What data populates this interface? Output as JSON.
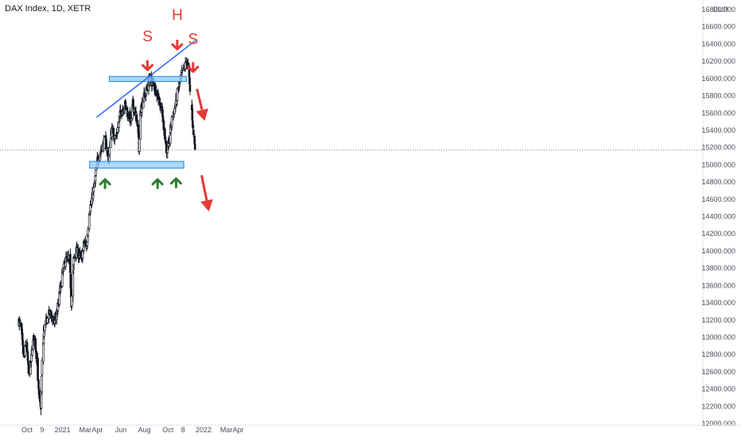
{
  "symbol": "DAX Index, 1D, XETR",
  "currency": "EUR",
  "colors": {
    "candle": "#131722",
    "trend": "#2962ff",
    "zone_fill": "#90caf9",
    "zone_border": "#1e88e5",
    "annot_red": "#e53935",
    "up_arrow": "#2e7d32",
    "price_tag": "#131722",
    "axis_text": "#4a4e59"
  },
  "chart_data": {
    "type": "candlestick",
    "ylim": [
      12000,
      16800
    ],
    "yticks": [
      12000,
      12200,
      12400,
      12600,
      12800,
      13000,
      13200,
      13400,
      13600,
      13800,
      14000,
      14200,
      14400,
      14600,
      14800,
      15000,
      15200,
      15400,
      15600,
      15800,
      16000,
      16200,
      16400,
      16600,
      16800
    ],
    "ytick_labels": [
      "12000.000",
      "12200.000",
      "12400.000",
      "12600.000",
      "12800.000",
      "13000.000",
      "13200.000",
      "13400.000",
      "13600.000",
      "13800.000",
      "14000.000",
      "14200.000",
      "14400.000",
      "14600.000",
      "14800.000",
      "15000.000",
      "15200.000",
      "15400.000",
      "15600.000",
      "15800.000",
      "16000.000",
      "16200.000",
      "16400.000",
      "16600.000",
      "16800.000"
    ],
    "xticks": [
      {
        "label": "Oct",
        "day": 0
      },
      {
        "label": "9",
        "day": 39
      },
      {
        "label": "2021",
        "day": 92
      },
      {
        "label": "Mar",
        "day": 151
      },
      {
        "label": "Apr",
        "day": 182
      },
      {
        "label": "Jun",
        "day": 243
      },
      {
        "label": "Aug",
        "day": 304
      },
      {
        "label": "Oct",
        "day": 365
      },
      {
        "label": "8",
        "day": 404
      },
      {
        "label": "2022",
        "day": 457
      },
      {
        "label": "Mar",
        "day": 516
      },
      {
        "label": "Apr",
        "day": 547
      }
    ],
    "last_price": 15169.98,
    "last_price_label": "15169.980",
    "anchors": [
      [
        -22,
        13200
      ],
      [
        -15,
        13100
      ],
      [
        -8,
        12700
      ],
      [
        -2,
        13000
      ],
      [
        5,
        12500
      ],
      [
        12,
        12800
      ],
      [
        19,
        13050
      ],
      [
        26,
        12700
      ],
      [
        31,
        12300
      ],
      [
        34,
        12150
      ],
      [
        36,
        12200
      ],
      [
        39,
        12700
      ],
      [
        44,
        13100
      ],
      [
        52,
        13200
      ],
      [
        60,
        13300
      ],
      [
        70,
        13150
      ],
      [
        80,
        13350
      ],
      [
        90,
        13700
      ],
      [
        100,
        13900
      ],
      [
        110,
        13900
      ],
      [
        115,
        13400
      ],
      [
        121,
        13900
      ],
      [
        128,
        14000
      ],
      [
        135,
        13950
      ],
      [
        141,
        13900
      ],
      [
        148,
        14100
      ],
      [
        155,
        14050
      ],
      [
        160,
        14450
      ],
      [
        166,
        14550
      ],
      [
        172,
        14700
      ],
      [
        176,
        14800
      ],
      [
        180,
        15000
      ],
      [
        185,
        15100
      ],
      [
        190,
        15150
      ],
      [
        195,
        15200
      ],
      [
        202,
        15300
      ],
      [
        208,
        15150
      ],
      [
        212,
        15050
      ],
      [
        218,
        15400
      ],
      [
        224,
        15350
      ],
      [
        230,
        15300
      ],
      [
        236,
        15450
      ],
      [
        242,
        15600
      ],
      [
        248,
        15650
      ],
      [
        254,
        15700
      ],
      [
        260,
        15600
      ],
      [
        266,
        15550
      ],
      [
        270,
        15500
      ],
      [
        274,
        15700
      ],
      [
        280,
        15600
      ],
      [
        286,
        15500
      ],
      [
        290,
        15200
      ],
      [
        294,
        15600
      ],
      [
        299,
        15750
      ],
      [
        304,
        15800
      ],
      [
        312,
        15900
      ],
      [
        318,
        16000
      ],
      [
        324,
        15950
      ],
      [
        330,
        15900
      ],
      [
        336,
        15850
      ],
      [
        342,
        15750
      ],
      [
        348,
        15650
      ],
      [
        354,
        15450
      ],
      [
        358,
        15300
      ],
      [
        362,
        15150
      ],
      [
        366,
        15200
      ],
      [
        370,
        15350
      ],
      [
        376,
        15550
      ],
      [
        382,
        15650
      ],
      [
        390,
        15850
      ],
      [
        398,
        16000
      ],
      [
        404,
        16100
      ],
      [
        410,
        16150
      ],
      [
        414,
        16200
      ],
      [
        418,
        16100
      ],
      [
        422,
        15850
      ],
      [
        426,
        15700
      ],
      [
        430,
        15400
      ],
      [
        433,
        15250
      ],
      [
        436,
        15180
      ]
    ],
    "gaps": [
      [
        422,
        426
      ]
    ],
    "trendline": {
      "day1": 180,
      "price1": 15550,
      "day2": 436,
      "price2": 16440
    },
    "zones": [
      {
        "day1": 213,
        "day2": 413,
        "low": 15975,
        "high": 16015
      },
      {
        "day1": 162,
        "day2": 406,
        "low": 14970,
        "high": 15030
      }
    ],
    "annotations": [
      {
        "text": "S",
        "day": 312,
        "price": 16430,
        "color": "#e53935"
      },
      {
        "text": "H",
        "day": 389,
        "price": 16680,
        "color": "#e53935"
      },
      {
        "text": "S",
        "day": 430,
        "price": 16400,
        "color": "#e53935"
      }
    ],
    "down_small": [
      {
        "day": 312,
        "price": 16210
      },
      {
        "day": 389,
        "price": 16450
      },
      {
        "day": 430,
        "price": 16190
      }
    ],
    "down_big": [
      {
        "day1": 440,
        "price1": 15880,
        "day2": 460,
        "price2": 15510
      },
      {
        "day1": 452,
        "price1": 14880,
        "day2": 471,
        "price2": 14460
      }
    ],
    "up_arrows": [
      {
        "day": 202,
        "price": 14720
      },
      {
        "day": 338,
        "price": 14720
      },
      {
        "day": 386,
        "price": 14730
      }
    ]
  }
}
